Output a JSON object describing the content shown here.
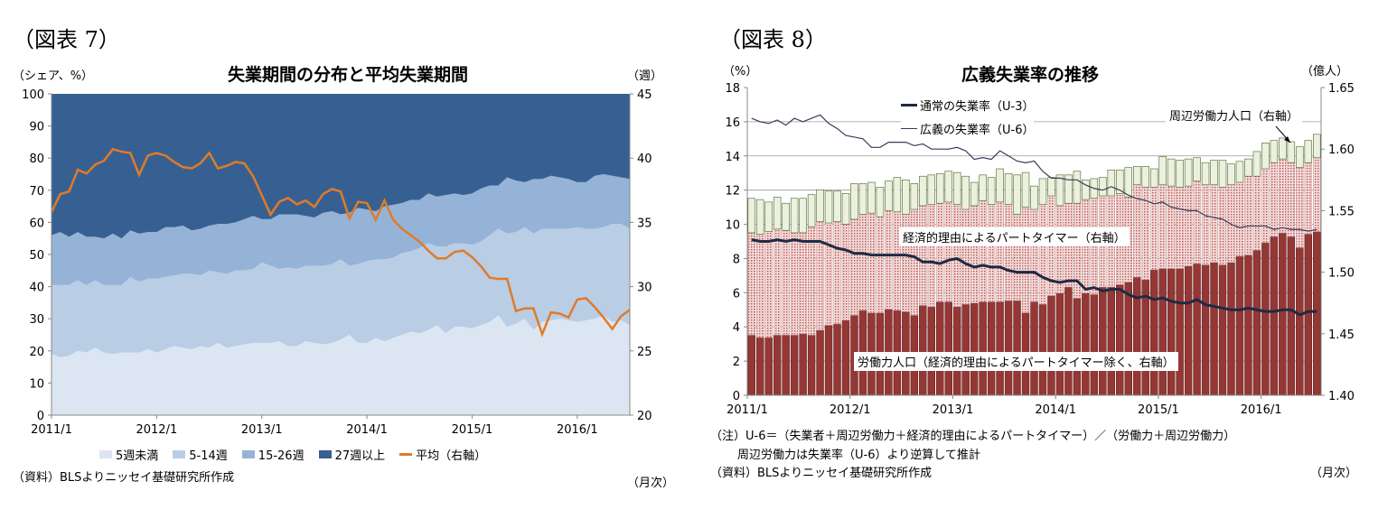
{
  "figures": [
    {
      "label": "（図表 7）"
    },
    {
      "label": "（図表 8）"
    }
  ],
  "chart_data": [
    {
      "type": "area",
      "title": "失業期間の分布と平均失業期間",
      "ylabel": "（シェア、%）",
      "y2label": "（週）",
      "xlabel": "（月次）",
      "frequency": "monthly",
      "x_start": "2011/1",
      "x_end": "2016/7",
      "x_ticks": [
        "2011/1",
        "2012/1",
        "2013/1",
        "2014/1",
        "2015/1",
        "2016/1"
      ],
      "ylim": [
        0,
        100
      ],
      "y_ticks": [
        0,
        10,
        20,
        30,
        40,
        50,
        60,
        70,
        80,
        90,
        100
      ],
      "y2lim": [
        20,
        45
      ],
      "y2_ticks": [
        20,
        25,
        30,
        35,
        40,
        45
      ],
      "grid": false,
      "legend_position": "bottom",
      "source": "（資料）BLSよりニッセイ基礎研究所作成",
      "series": [
        {
          "name": "5週未満",
          "kind": "stacked-area",
          "color": "#dce6f2",
          "values": [
            19,
            18,
            18.5,
            20,
            19.5,
            21,
            19.5,
            19,
            19.5,
            19.5,
            19.5,
            20.5,
            19.5,
            20.5,
            21.5,
            21,
            20.5,
            21.5,
            21,
            22.5,
            21,
            21.5,
            22,
            22.5,
            22.5,
            22.5,
            23,
            21.5,
            21.5,
            23,
            22.5,
            22,
            22.5,
            23.5,
            25,
            22.5,
            22.5,
            24,
            23,
            24,
            25,
            26,
            25.5,
            26.5,
            28,
            25.5,
            27.5,
            27.5,
            27,
            28,
            29,
            31,
            27.5,
            28.5,
            30,
            26.5,
            29,
            29.5,
            30,
            29.5,
            29,
            29.5,
            30,
            31,
            29,
            29.5,
            28
          ]
        },
        {
          "name": "5-14週",
          "kind": "stacked-area",
          "color": "#b9cde5",
          "values": [
            21.5,
            22.5,
            22,
            22,
            21,
            21,
            21,
            21.5,
            21,
            23.5,
            22,
            22,
            23,
            22.5,
            22,
            23,
            23.5,
            22,
            24,
            22,
            23,
            23.5,
            23,
            23,
            25,
            24,
            22.5,
            24.5,
            24,
            23.5,
            24,
            24.5,
            24.5,
            25,
            21.5,
            24.5,
            25.5,
            24.5,
            25.5,
            25,
            25.5,
            25,
            26.5,
            27,
            24.5,
            27,
            26,
            26,
            26,
            26,
            27,
            27,
            29,
            28.5,
            28.5,
            30,
            29,
            28.5,
            28,
            28.5,
            29.5,
            28.5,
            28,
            27.5,
            30.5,
            30,
            30
          ]
        },
        {
          "name": "15-26週",
          "kind": "stacked-area",
          "color": "#95b3d7",
          "values": [
            15.5,
            16.5,
            15,
            15,
            15,
            13.5,
            14.5,
            16,
            14.5,
            14.5,
            15,
            14.5,
            14.5,
            15.5,
            15,
            15,
            13.5,
            14.5,
            14,
            15,
            15.5,
            15,
            16,
            16.5,
            13.5,
            14.5,
            17,
            16.5,
            17,
            15.5,
            15,
            16.5,
            16.5,
            14,
            16.5,
            17.5,
            16,
            15,
            16.5,
            16.5,
            15.5,
            16,
            15,
            15.5,
            15.5,
            16,
            15.5,
            15,
            16,
            16.5,
            15.5,
            13.5,
            17.5,
            16,
            14,
            17,
            15.5,
            16.5,
            16,
            15.5,
            14,
            14.5,
            16.5,
            16.5,
            15,
            14.5,
            15.5
          ]
        },
        {
          "name": "27週以上",
          "kind": "stacked-area",
          "color": "#376092",
          "values": [
            44,
            43,
            44.5,
            43,
            44.5,
            44.5,
            45,
            43.5,
            45,
            42.5,
            43.5,
            43,
            43,
            41.5,
            41.5,
            41,
            42.5,
            42,
            41,
            40.5,
            40.5,
            40,
            39,
            38,
            39,
            39,
            37.5,
            37.5,
            37.5,
            38,
            38.5,
            37,
            36.5,
            37.5,
            37,
            35.5,
            36,
            36.5,
            35,
            34.5,
            34,
            33,
            33,
            31,
            32,
            31.5,
            31,
            31.5,
            31,
            29.5,
            28.5,
            28.5,
            26,
            27,
            27.5,
            26.5,
            26.5,
            25.5,
            26,
            26.5,
            27.5,
            27.5,
            25.5,
            25,
            25.5,
            26,
            26.5
          ]
        },
        {
          "name": "平均（右軸）",
          "kind": "line",
          "axis": "right",
          "color": "#e07b29",
          "values": [
            35.8,
            37.2,
            37.4,
            39.1,
            38.8,
            39.5,
            39.8,
            40.7,
            40.5,
            40.4,
            38.7,
            40.2,
            40.4,
            40.2,
            39.7,
            39.3,
            39.2,
            39.6,
            40.4,
            39.2,
            39.4,
            39.7,
            39.6,
            38.6,
            37.1,
            35.6,
            36.6,
            36.9,
            36.4,
            36.7,
            36.2,
            37.2,
            37.6,
            37.4,
            35.3,
            36.6,
            36.5,
            35.2,
            36.7,
            35.2,
            34.5,
            34.0,
            33.5,
            32.8,
            32.2,
            32.2,
            32.7,
            32.8,
            32.3,
            31.6,
            30.7,
            30.6,
            30.6,
            28.1,
            28.3,
            28.3,
            26.3,
            28.0,
            27.9,
            27.6,
            29.0,
            29.1,
            28.4,
            27.6,
            26.7,
            27.7,
            28.2
          ]
        }
      ]
    },
    {
      "type": "bar",
      "title": "広義失業率の推移",
      "ylabel": "（%）",
      "y2label": "（億人）",
      "xlabel": "（月次）",
      "frequency": "monthly",
      "x_start": "2011/1",
      "x_end": "2016/7",
      "x_ticks": [
        "2011/1",
        "2012/1",
        "2013/1",
        "2014/1",
        "2015/1",
        "2016/1"
      ],
      "ylim": [
        0,
        18
      ],
      "y_ticks": [
        0,
        2,
        4,
        6,
        8,
        10,
        12,
        14,
        16,
        18
      ],
      "y2lim": [
        1.4,
        1.65
      ],
      "y2_ticks": [
        "1.40",
        "1.45",
        "1.50",
        "1.55",
        "1.60",
        "1.65"
      ],
      "grid": true,
      "notes": [
        "（注）U-6＝（失業者＋周辺労働力＋経済的理由によるパートタイマー）／（労働力＋周辺労働力）",
        "周辺労働力は失業率（U-6）より逆算して推計"
      ],
      "source": "（資料）BLSよりニッセイ基礎研究所作成",
      "annotations": {
        "marginal": "周辺労働力人口（右軸）",
        "part_time": "経済的理由によるパートタイマー（右軸）",
        "labor": "労働力人口（経済的理由によるパートタイマー除く、右軸）"
      },
      "legend": [
        "通常の失業率（U-3）",
        "広義の失業率（U-6）"
      ],
      "series": [
        {
          "name": "労働力人口（経済的理由によるパートタイマー除く、右軸）",
          "kind": "stacked-bar",
          "axis": "right",
          "unit": "億人",
          "color": "#953735",
          "values": [
            1.449,
            1.447,
            1.447,
            1.449,
            1.449,
            1.449,
            1.45,
            1.449,
            1.453,
            1.457,
            1.458,
            1.461,
            1.465,
            1.469,
            1.467,
            1.467,
            1.47,
            1.469,
            1.468,
            1.465,
            1.473,
            1.472,
            1.476,
            1.476,
            1.472,
            1.474,
            1.475,
            1.476,
            1.476,
            1.476,
            1.477,
            1.477,
            1.467,
            1.476,
            1.474,
            1.481,
            1.483,
            1.488,
            1.479,
            1.483,
            1.482,
            1.488,
            1.488,
            1.49,
            1.492,
            1.496,
            1.494,
            1.502,
            1.503,
            1.503,
            1.503,
            1.505,
            1.507,
            1.506,
            1.508,
            1.506,
            1.508,
            1.513,
            1.514,
            1.518,
            1.524,
            1.529,
            1.532,
            1.529,
            1.52,
            1.531,
            1.533
          ]
        },
        {
          "name": "経済的理由によるパートタイマー（右軸）",
          "kind": "stacked-bar",
          "axis": "right",
          "unit": "億人",
          "color": "#e6b9b8",
          "values": [
            0.083,
            0.084,
            0.086,
            0.086,
            0.085,
            0.083,
            0.082,
            0.088,
            0.088,
            0.083,
            0.083,
            0.078,
            0.078,
            0.078,
            0.081,
            0.078,
            0.08,
            0.08,
            0.079,
            0.086,
            0.081,
            0.083,
            0.08,
            0.081,
            0.083,
            0.077,
            0.079,
            0.082,
            0.079,
            0.081,
            0.078,
            0.07,
            0.086,
            0.075,
            0.081,
            0.081,
            0.071,
            0.068,
            0.077,
            0.076,
            0.078,
            0.074,
            0.074,
            0.074,
            0.069,
            0.075,
            0.075,
            0.067,
            0.068,
            0.067,
            0.066,
            0.065,
            0.067,
            0.065,
            0.063,
            0.063,
            0.063,
            0.06,
            0.064,
            0.06,
            0.06,
            0.06,
            0.06,
            0.06,
            0.065,
            0.058,
            0.06
          ]
        },
        {
          "name": "周辺労働力人口（右軸）",
          "kind": "stacked-bar",
          "axis": "right",
          "unit": "億人",
          "color": "#ebf1de",
          "values": [
            0.028,
            0.028,
            0.024,
            0.026,
            0.022,
            0.028,
            0.028,
            0.026,
            0.026,
            0.026,
            0.025,
            0.025,
            0.029,
            0.025,
            0.025,
            0.024,
            0.024,
            0.028,
            0.028,
            0.021,
            0.024,
            0.024,
            0.024,
            0.025,
            0.026,
            0.027,
            0.019,
            0.021,
            0.022,
            0.027,
            0.025,
            0.032,
            0.028,
            0.019,
            0.021,
            0.015,
            0.025,
            0.023,
            0.026,
            0.016,
            0.016,
            0.015,
            0.021,
            0.019,
            0.024,
            0.015,
            0.017,
            0.015,
            0.023,
            0.022,
            0.022,
            0.022,
            0.019,
            0.018,
            0.02,
            0.022,
            0.017,
            0.017,
            0.014,
            0.02,
            0.021,
            0.018,
            0.017,
            0.017,
            0.017,
            0.018,
            0.019
          ]
        },
        {
          "name": "通常の失業率（U-3）",
          "kind": "line",
          "axis": "left",
          "unit": "%",
          "color": "#1f2a44",
          "values": [
            9.1,
            9.0,
            9.0,
            9.1,
            9.0,
            9.1,
            9.0,
            9.0,
            9.0,
            8.8,
            8.6,
            8.5,
            8.3,
            8.3,
            8.2,
            8.2,
            8.2,
            8.2,
            8.2,
            8.1,
            7.8,
            7.8,
            7.7,
            7.9,
            8.0,
            7.7,
            7.5,
            7.6,
            7.5,
            7.5,
            7.3,
            7.2,
            7.2,
            7.2,
            6.9,
            6.7,
            6.6,
            6.7,
            6.7,
            6.2,
            6.3,
            6.1,
            6.2,
            6.2,
            5.9,
            5.7,
            5.8,
            5.6,
            5.7,
            5.5,
            5.4,
            5.4,
            5.6,
            5.3,
            5.2,
            5.1,
            5.0,
            5.0,
            5.1,
            5.0,
            4.9,
            4.9,
            5.0,
            5.0,
            4.7,
            4.9,
            4.9
          ]
        },
        {
          "name": "広義の失業率（U-6）",
          "kind": "line",
          "axis": "left",
          "unit": "%",
          "color": "#3a3a5a",
          "values": [
            16.2,
            16.0,
            15.9,
            16.1,
            15.8,
            16.2,
            16.0,
            16.2,
            16.4,
            15.9,
            15.6,
            15.2,
            15.1,
            15.0,
            14.5,
            14.5,
            14.8,
            14.8,
            14.8,
            14.6,
            14.7,
            14.4,
            14.4,
            14.4,
            14.5,
            14.3,
            13.8,
            13.9,
            13.8,
            14.3,
            14.0,
            13.7,
            13.6,
            13.7,
            13.1,
            12.7,
            12.7,
            12.6,
            12.6,
            12.3,
            12.1,
            12.0,
            12.2,
            12.0,
            11.7,
            11.5,
            11.4,
            11.2,
            11.3,
            11.0,
            10.9,
            10.8,
            10.8,
            10.5,
            10.4,
            10.3,
            10.0,
            9.8,
            9.9,
            9.9,
            9.9,
            9.7,
            9.8,
            9.7,
            9.7,
            9.6,
            9.7
          ]
        }
      ]
    }
  ]
}
